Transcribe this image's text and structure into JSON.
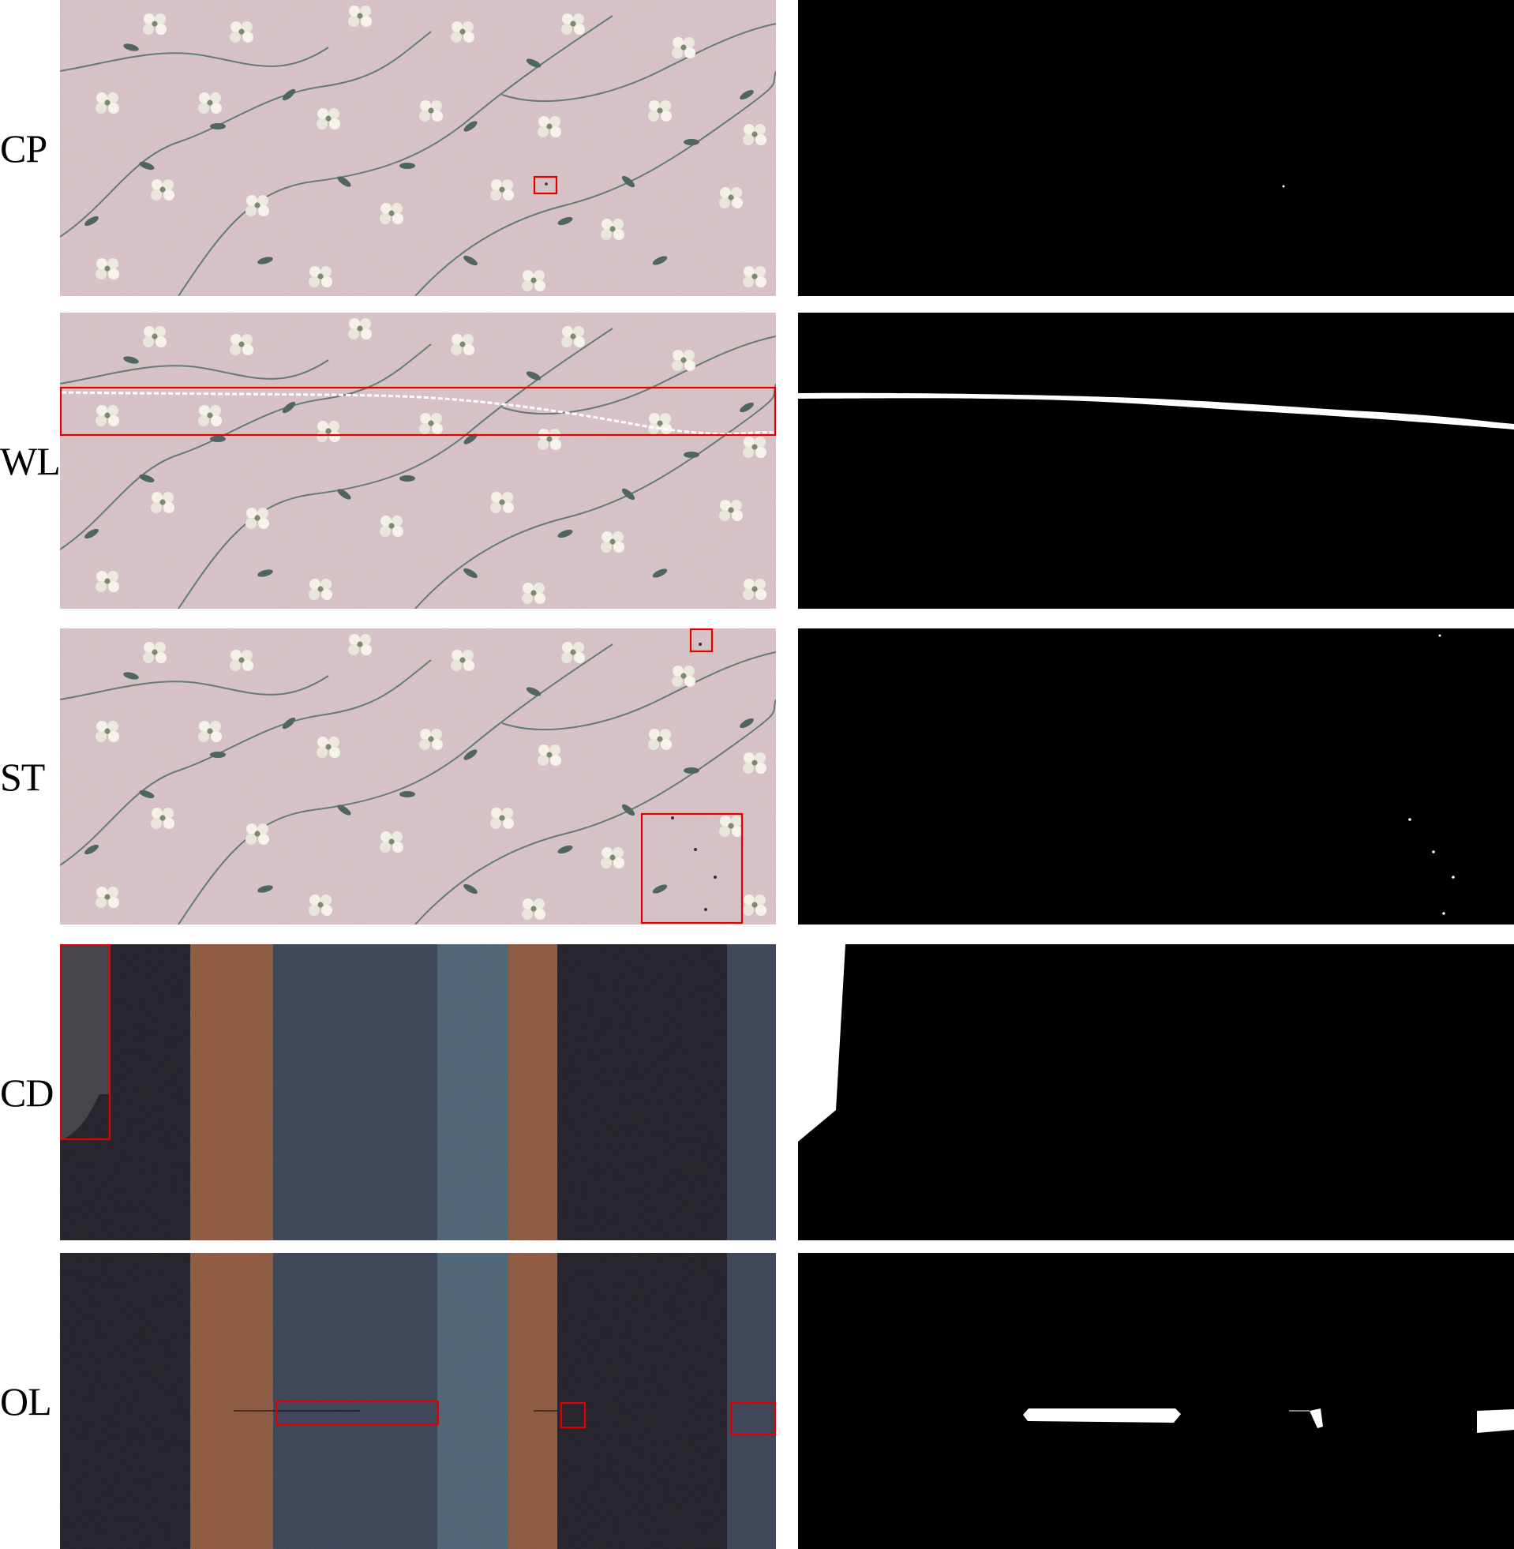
{
  "rows": [
    {
      "id": "cp",
      "label": "CP",
      "fabric": "floral-print",
      "defect_boxes": 1
    },
    {
      "id": "wl",
      "label": "WL",
      "fabric": "floral-print",
      "defect_boxes": 1
    },
    {
      "id": "st",
      "label": "ST",
      "fabric": "floral-print",
      "defect_boxes": 2
    },
    {
      "id": "cd",
      "label": "CD",
      "fabric": "striped-weave",
      "defect_boxes": 1
    },
    {
      "id": "ol",
      "label": "OL",
      "fabric": "striped-weave",
      "defect_boxes": 3
    }
  ],
  "colors": {
    "floral_background": "#d8c2c7",
    "stripe_dark": "#25212a",
    "stripe_rust": "#8e5a40",
    "stripe_navy": "#3c4457",
    "stripe_steel": "#4f6478",
    "defect_box": "#e00000",
    "mask_background": "#000000",
    "mask_defect": "#ffffff"
  }
}
